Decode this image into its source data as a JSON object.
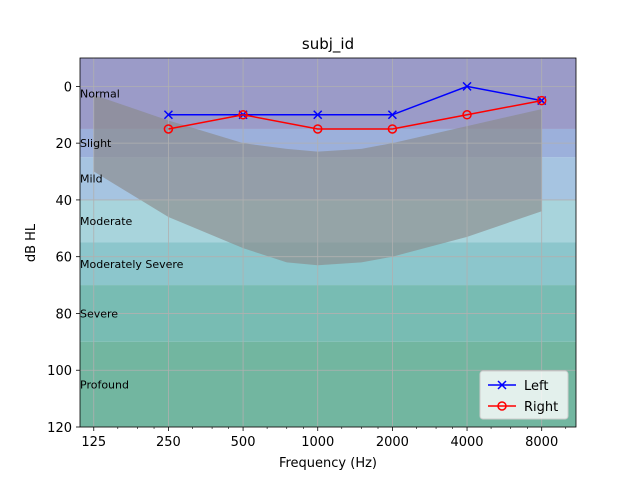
{
  "chart_data": {
    "type": "line",
    "title": "subj_id",
    "xlabel": "Frequency (Hz)",
    "ylabel": "dB HL",
    "x_scale": "log2",
    "xlim": [
      110,
      11000
    ],
    "ylim": [
      120,
      -10
    ],
    "y_inverted": true,
    "x_ticks": [
      125,
      250,
      500,
      1000,
      2000,
      4000,
      8000
    ],
    "x_tick_labels": [
      "125",
      "250",
      "500",
      "1000",
      "2000",
      "4000",
      "8000"
    ],
    "y_ticks": [
      0,
      20,
      40,
      60,
      80,
      100,
      120
    ],
    "y_tick_labels": [
      "0",
      "20",
      "40",
      "60",
      "80",
      "100",
      "120"
    ],
    "grid": true,
    "legend_position": "bottom-right",
    "bands": [
      {
        "label": "Normal",
        "from": -10,
        "to": 15,
        "color": "#9b9bc8"
      },
      {
        "label": "Slight",
        "from": 15,
        "to": 25,
        "color": "#9cb0db"
      },
      {
        "label": "Mild",
        "from": 25,
        "to": 40,
        "color": "#a6c4e1"
      },
      {
        "label": "Moderate",
        "from": 40,
        "to": 55,
        "color": "#a8d4dc"
      },
      {
        "label": "Moderately Severe",
        "from": 55,
        "to": 70,
        "color": "#8cc6cc"
      },
      {
        "label": "Severe",
        "from": 70,
        "to": 90,
        "color": "#78bcb3"
      },
      {
        "label": "Profound",
        "from": 90,
        "to": 120,
        "color": "#72b6a0"
      }
    ],
    "speech_banana": {
      "color": "#8a8a8a",
      "opacity": 0.65,
      "upper": [
        [
          125,
          3
        ],
        [
          250,
          12
        ],
        [
          500,
          20
        ],
        [
          750,
          22
        ],
        [
          1000,
          23
        ],
        [
          1500,
          22
        ],
        [
          2000,
          20
        ],
        [
          4000,
          14
        ],
        [
          8000,
          8
        ]
      ],
      "lower": [
        [
          125,
          30
        ],
        [
          250,
          46
        ],
        [
          500,
          57
        ],
        [
          750,
          62
        ],
        [
          1000,
          63
        ],
        [
          1500,
          62
        ],
        [
          2000,
          60
        ],
        [
          4000,
          53
        ],
        [
          8000,
          44
        ]
      ]
    },
    "series": [
      {
        "name": "Left",
        "color": "#0000ff",
        "marker": "x",
        "x": [
          250,
          500,
          1000,
          2000,
          4000,
          8000
        ],
        "values": [
          10,
          10,
          10,
          10,
          0,
          5
        ]
      },
      {
        "name": "Right",
        "color": "#ff0000",
        "marker": "o",
        "x": [
          250,
          500,
          1000,
          2000,
          4000,
          8000
        ],
        "values": [
          15,
          10,
          15,
          15,
          10,
          5
        ]
      }
    ]
  }
}
